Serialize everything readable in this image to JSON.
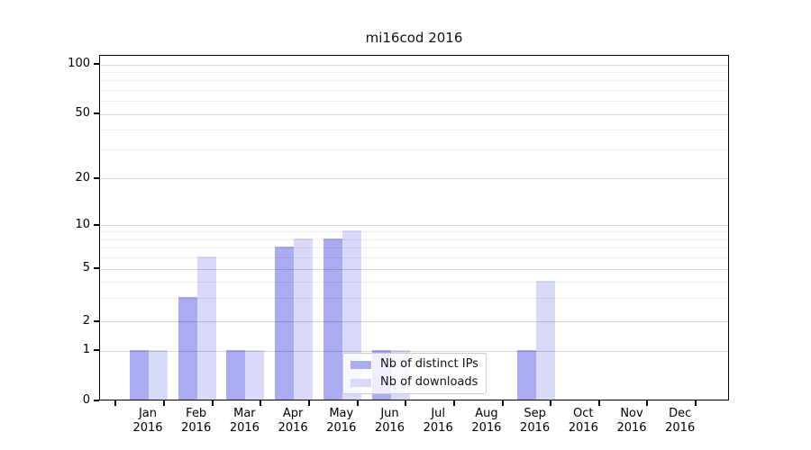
{
  "chart_data": {
    "type": "bar",
    "title": "mi16cod 2016",
    "categories": [
      "Jan 2016",
      "Feb 2016",
      "Mar 2016",
      "Apr 2016",
      "May 2016",
      "Jun 2016",
      "Jul 2016",
      "Aug 2016",
      "Sep 2016",
      "Oct 2016",
      "Nov 2016",
      "Dec 2016"
    ],
    "series": [
      {
        "name": "Nb of distinct IPs",
        "color": "#ababf1",
        "values": [
          1,
          3,
          1,
          7,
          8,
          1,
          0,
          0,
          1,
          0,
          0,
          0
        ]
      },
      {
        "name": "Nb of downloads",
        "color": "#d9d9f9",
        "values": [
          1,
          6,
          1,
          8,
          9,
          1,
          0,
          0,
          4,
          0,
          0,
          0
        ]
      }
    ],
    "yscale": "log-like (0 shown at baseline)",
    "y_ticks": [
      0,
      1,
      2,
      5,
      10,
      20,
      50,
      100
    ],
    "y_minor_gridlines": [
      3,
      4,
      6,
      7,
      8,
      9,
      30,
      40,
      60,
      70,
      80,
      90
    ],
    "ylim": [
      0,
      115
    ],
    "xlabel": "",
    "ylabel": "",
    "grid": true,
    "legend_position": "lower center"
  }
}
